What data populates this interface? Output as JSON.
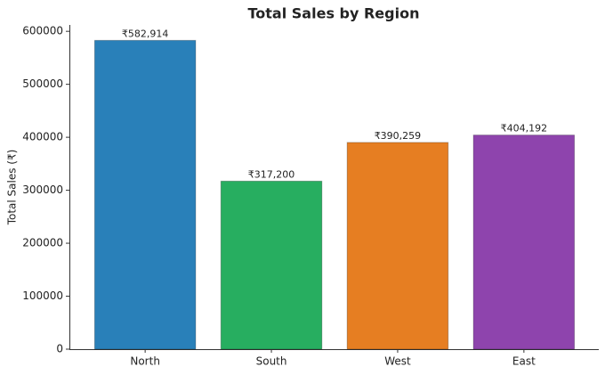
{
  "chart_data": {
    "type": "bar",
    "title": "Total Sales by Region",
    "y_label": "Total Sales (₹)",
    "categories": [
      "North",
      "South",
      "West",
      "East"
    ],
    "values": [
      582914,
      317200,
      390259,
      404192
    ],
    "value_labels": [
      "₹582,914",
      "₹317,200",
      "₹390,259",
      "₹404,192"
    ],
    "colors": [
      "#2980b9",
      "#27ae60",
      "#e67e22",
      "#8e44ad"
    ],
    "ylim": [
      0,
      612060
    ],
    "yticks": [
      0,
      100000,
      200000,
      300000,
      400000,
      500000,
      600000
    ],
    "grid": false
  }
}
